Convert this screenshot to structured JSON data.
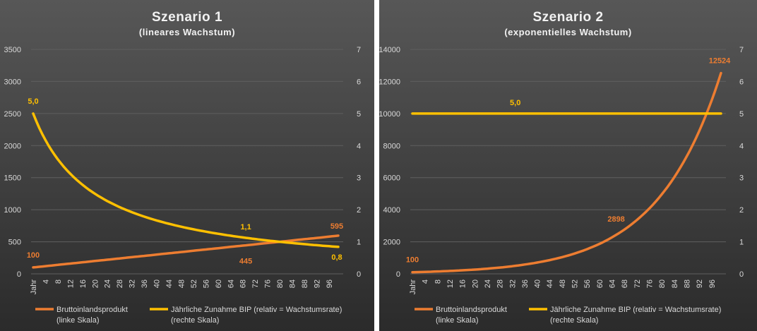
{
  "colors": {
    "background_top": "#575757",
    "background_bottom": "#2b2b2b",
    "gdp": "#ed7d31",
    "growth": "#ffc000",
    "text": "#d9d9d9",
    "title": "#f2f2f2",
    "grid": "#5f5f5f"
  },
  "chart_data": [
    {
      "type": "line",
      "title": "Szenario 1",
      "subtitle": "(lineares Wachstum)",
      "x_first_label": "Jahr",
      "x_tick_labels": [
        "Jahr",
        "4",
        "8",
        "12",
        "16",
        "20",
        "24",
        "28",
        "32",
        "36",
        "40",
        "44",
        "48",
        "52",
        "56",
        "60",
        "64",
        "68",
        "72",
        "76",
        "80",
        "84",
        "88",
        "92",
        "96"
      ],
      "x_range": [
        0,
        99
      ],
      "y_left": {
        "ylim": [
          0,
          3500
        ],
        "ticks": [
          "0",
          "500",
          "1000",
          "1500",
          "2000",
          "2500",
          "3000",
          "3500"
        ]
      },
      "y_right": {
        "ylim": [
          0,
          7
        ],
        "ticks": [
          "0",
          "1",
          "2",
          "3",
          "4",
          "5",
          "6",
          "7"
        ]
      },
      "grid": true,
      "legend_position": "bottom",
      "series": [
        {
          "name": "Bruttoinlandsprodukt (linke Skala)",
          "axis": "left",
          "color": "gdp",
          "model": "linear",
          "start": 100,
          "step": 5
        },
        {
          "name": "Jährliche Zunahme BIP (relativ = Wachstumsrate) (rechte Skala)",
          "axis": "right",
          "color": "growth",
          "model": "reciprocal",
          "gdp_start": 100,
          "gdp_step": 5
        }
      ],
      "annotations": [
        {
          "text": "100",
          "series": 0,
          "x": 0,
          "color": "gdp"
        },
        {
          "text": "445",
          "series": 0,
          "x": 69,
          "color": "gdp"
        },
        {
          "text": "595",
          "series": 0,
          "x": 99,
          "color": "gdp"
        },
        {
          "text": "5,0",
          "series": 1,
          "x": 0,
          "color": "growth"
        },
        {
          "text": "1,1",
          "series": 1,
          "x": 69,
          "color": "growth"
        },
        {
          "text": "0,8",
          "series": 1,
          "x": 99,
          "color": "growth"
        }
      ]
    },
    {
      "type": "line",
      "title": "Szenario 2",
      "subtitle": "(exponentielles Wachstum)",
      "x_first_label": "Jahr",
      "x_tick_labels": [
        "Jahr",
        "4",
        "8",
        "12",
        "16",
        "20",
        "24",
        "28",
        "32",
        "36",
        "40",
        "44",
        "48",
        "52",
        "56",
        "60",
        "64",
        "68",
        "72",
        "76",
        "80",
        "84",
        "88",
        "92",
        "96"
      ],
      "x_range": [
        0,
        99
      ],
      "y_left": {
        "ylim": [
          0,
          14000
        ],
        "ticks": [
          "0",
          "2000",
          "4000",
          "6000",
          "8000",
          "10000",
          "12000",
          "14000"
        ]
      },
      "y_right": {
        "ylim": [
          0,
          7
        ],
        "ticks": [
          "0",
          "1",
          "2",
          "3",
          "4",
          "5",
          "6",
          "7"
        ]
      },
      "grid": true,
      "legend_position": "bottom",
      "series": [
        {
          "name": "Bruttoinlandsprodukt (linke Skala)",
          "axis": "left",
          "color": "gdp",
          "model": "exponential",
          "start": 100,
          "rate": 0.05
        },
        {
          "name": "Jährliche Zunahme BIP (relativ = Wachstumsrate) (rechte Skala)",
          "axis": "right",
          "color": "growth",
          "model": "constant",
          "value": 5
        }
      ],
      "annotations": [
        {
          "text": "100",
          "series": 0,
          "x": 0,
          "color": "gdp"
        },
        {
          "text": "2898",
          "series": 0,
          "x": 69,
          "color": "gdp"
        },
        {
          "text": "12524",
          "series": 0,
          "x": 99,
          "color": "gdp"
        },
        {
          "text": "5,0",
          "series": 1,
          "x": 33,
          "color": "growth"
        }
      ]
    }
  ],
  "legend": {
    "gdp_line1": "Bruttoinlandsprodukt",
    "gdp_line2": "(linke Skala)",
    "growth_line1": "Jährliche Zunahme BIP (relativ = Wachstumsrate)",
    "growth_line2": "(rechte Skala)"
  }
}
